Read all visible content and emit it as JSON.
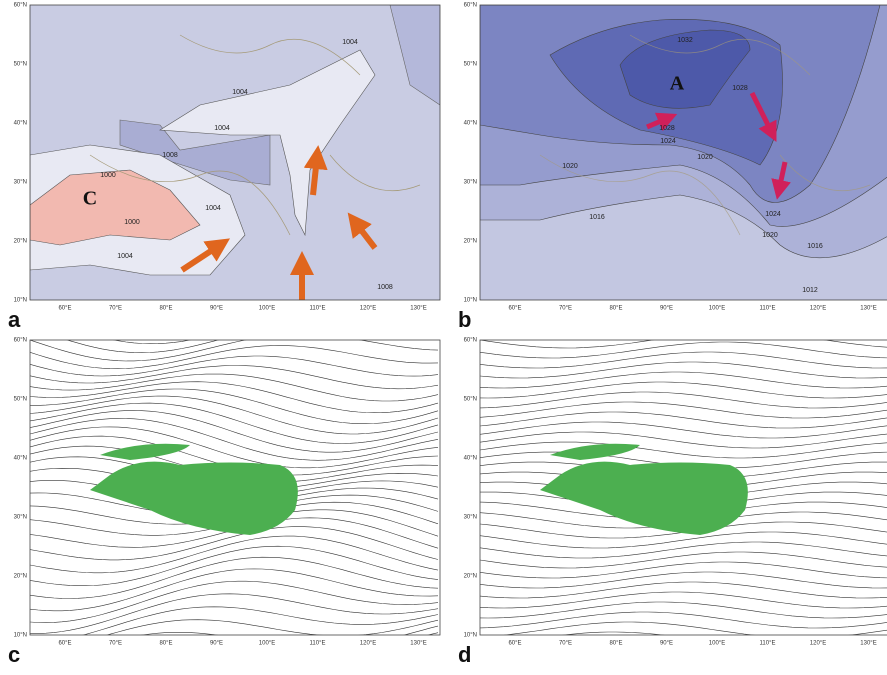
{
  "axes": {
    "lat": [
      "60°N",
      "50°N",
      "40°N",
      "30°N",
      "20°N",
      "10°N"
    ],
    "lon": [
      "60°E",
      "70°E",
      "80°E",
      "90°E",
      "100°E",
      "110°E",
      "120°E",
      "130°E"
    ]
  },
  "panels": [
    {
      "label": "a",
      "center": "C",
      "contours": [
        "1004",
        "1004",
        "1004",
        "1008",
        "1000",
        "1000",
        "1004",
        "1004",
        "1008"
      ]
    },
    {
      "label": "b",
      "center": "A",
      "contours": [
        "1032",
        "1028",
        "1028",
        "1024",
        "1020",
        "1020",
        "1016",
        "1024",
        "1020",
        "1016",
        "1012"
      ]
    },
    {
      "label": "c"
    },
    {
      "label": "d"
    }
  ]
}
